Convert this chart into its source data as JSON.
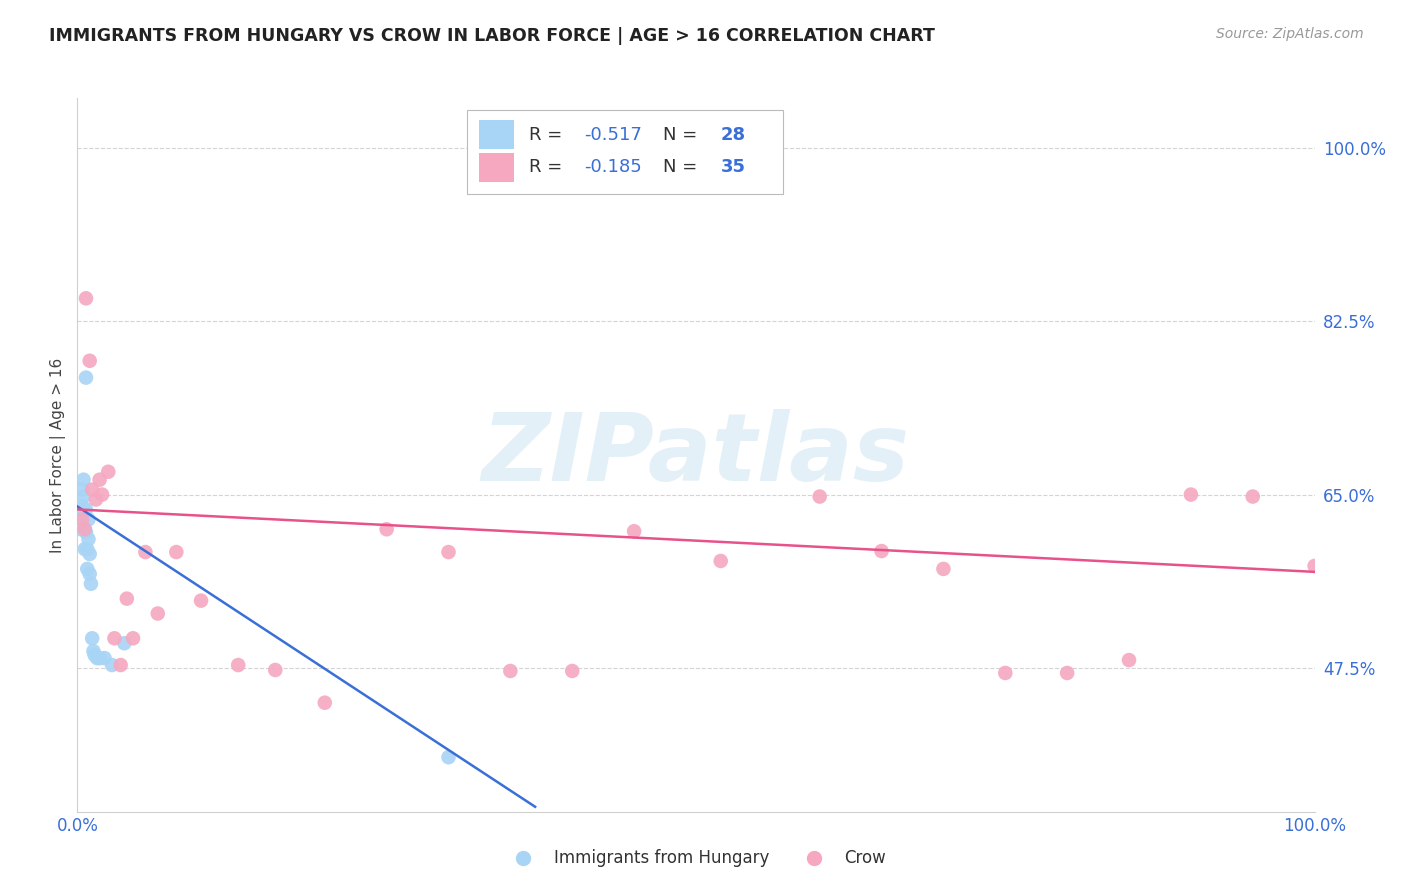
{
  "title": "IMMIGRANTS FROM HUNGARY VS CROW IN LABOR FORCE | AGE > 16 CORRELATION CHART",
  "source": "Source: ZipAtlas.com",
  "ylabel": "In Labor Force | Age > 16",
  "xlim": [
    0.0,
    1.0
  ],
  "ylim": [
    0.33,
    1.05
  ],
  "yticks": [
    0.475,
    0.65,
    0.825,
    1.0
  ],
  "ytick_labels": [
    "47.5%",
    "65.0%",
    "82.5%",
    "100.0%"
  ],
  "xticks": [
    0.0,
    0.25,
    0.5,
    0.75,
    1.0
  ],
  "xtick_labels": [
    "0.0%",
    "",
    "",
    "",
    "100.0%"
  ],
  "blue_color": "#a8d4f5",
  "pink_color": "#f5a8c0",
  "line_blue": "#3a6fd8",
  "line_pink": "#e8528a",
  "text_blue": "#3a6fd8",
  "background_color": "#ffffff",
  "grid_color": "#d0d0d0",
  "hungary_x": [
    0.003,
    0.003,
    0.004,
    0.004,
    0.005,
    0.005,
    0.005,
    0.006,
    0.006,
    0.007,
    0.007,
    0.007,
    0.008,
    0.008,
    0.009,
    0.009,
    0.01,
    0.01,
    0.011,
    0.012,
    0.013,
    0.014,
    0.016,
    0.018,
    0.022,
    0.028,
    0.038,
    0.3
  ],
  "hungary_y": [
    0.63,
    0.615,
    0.655,
    0.638,
    0.665,
    0.648,
    0.635,
    0.615,
    0.595,
    0.768,
    0.635,
    0.612,
    0.595,
    0.575,
    0.625,
    0.605,
    0.59,
    0.57,
    0.56,
    0.505,
    0.492,
    0.488,
    0.485,
    0.485,
    0.485,
    0.478,
    0.5,
    0.385
  ],
  "crow_x": [
    0.004,
    0.007,
    0.01,
    0.012,
    0.015,
    0.018,
    0.02,
    0.025,
    0.03,
    0.035,
    0.04,
    0.045,
    0.055,
    0.065,
    0.08,
    0.1,
    0.13,
    0.16,
    0.2,
    0.25,
    0.3,
    0.35,
    0.4,
    0.45,
    0.52,
    0.6,
    0.65,
    0.7,
    0.75,
    0.8,
    0.85,
    0.9,
    0.95,
    1.0,
    0.006
  ],
  "crow_y": [
    0.625,
    0.848,
    0.785,
    0.655,
    0.645,
    0.665,
    0.65,
    0.673,
    0.505,
    0.478,
    0.545,
    0.505,
    0.592,
    0.53,
    0.592,
    0.543,
    0.478,
    0.473,
    0.44,
    0.615,
    0.592,
    0.472,
    0.472,
    0.613,
    0.583,
    0.648,
    0.593,
    0.575,
    0.47,
    0.47,
    0.483,
    0.65,
    0.648,
    0.578,
    0.615
  ],
  "blue_trendline_x": [
    0.0,
    0.37
  ],
  "blue_trendline_y": [
    0.638,
    0.335
  ],
  "pink_trendline_x": [
    0.0,
    1.0
  ],
  "pink_trendline_y": [
    0.635,
    0.572
  ],
  "R1": "-0.517",
  "N1": "28",
  "R2": "-0.185",
  "N2": "35",
  "watermark": "ZIPatlas"
}
